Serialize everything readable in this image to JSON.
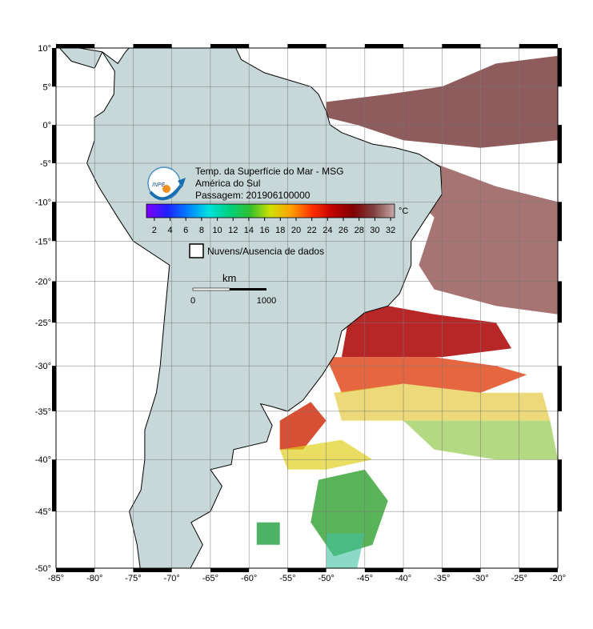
{
  "header": {
    "title": "Temp. da Superfície do Mar - MSG",
    "region": "América do Sul",
    "pass": "Passagem: 201906100000"
  },
  "colorbar": {
    "unit": "°C",
    "lim": [
      1,
      32.5
    ],
    "ticks": [
      2,
      4,
      6,
      8,
      10,
      12,
      14,
      16,
      18,
      20,
      22,
      24,
      26,
      28,
      30,
      32
    ],
    "colors": [
      "#8000ff",
      "#2020ff",
      "#0080ff",
      "#00e0e0",
      "#00d080",
      "#30c030",
      "#d0e000",
      "#ffa000",
      "#ff3000",
      "#c00000",
      "#800000",
      "#804040",
      "#c8a8a8"
    ]
  },
  "legend": {
    "label": "Nuvens/Ausencia de dados"
  },
  "scale_bar": {
    "unit": "km",
    "start": 0,
    "end": 1000
  },
  "map": {
    "xlim": [
      -85,
      -20
    ],
    "ylim": [
      -50,
      10
    ],
    "xticks": [
      {
        "value": -85,
        "label": "-85°"
      },
      {
        "value": -80,
        "label": "-80°"
      },
      {
        "value": -75,
        "label": "-75°"
      },
      {
        "value": -70,
        "label": "-70°"
      },
      {
        "value": -65,
        "label": "-65°"
      },
      {
        "value": -60,
        "label": "-60°"
      },
      {
        "value": -55,
        "label": "-55°"
      },
      {
        "value": -50,
        "label": "-50°"
      },
      {
        "value": -45,
        "label": "-45°"
      },
      {
        "value": -40,
        "label": "-40°"
      },
      {
        "value": -35,
        "label": "-35°"
      },
      {
        "value": -30,
        "label": "-30°"
      },
      {
        "value": -25,
        "label": "-25°"
      },
      {
        "value": -20,
        "label": "-20°"
      }
    ],
    "yticks": [
      {
        "value": 10,
        "label": "10°"
      },
      {
        "value": 5,
        "label": "5°"
      },
      {
        "value": 0,
        "label": "0°"
      },
      {
        "value": -5,
        "label": "-5°"
      },
      {
        "value": -10,
        "label": "-10°"
      },
      {
        "value": -15,
        "label": "-15°"
      },
      {
        "value": -20,
        "label": "-20°"
      },
      {
        "value": -25,
        "label": "-25°"
      },
      {
        "value": -30,
        "label": "-30°"
      },
      {
        "value": -35,
        "label": "-35°"
      },
      {
        "value": -40,
        "label": "-40°"
      },
      {
        "value": -45,
        "label": "-45°"
      },
      {
        "value": -50,
        "label": "-50°"
      }
    ]
  }
}
